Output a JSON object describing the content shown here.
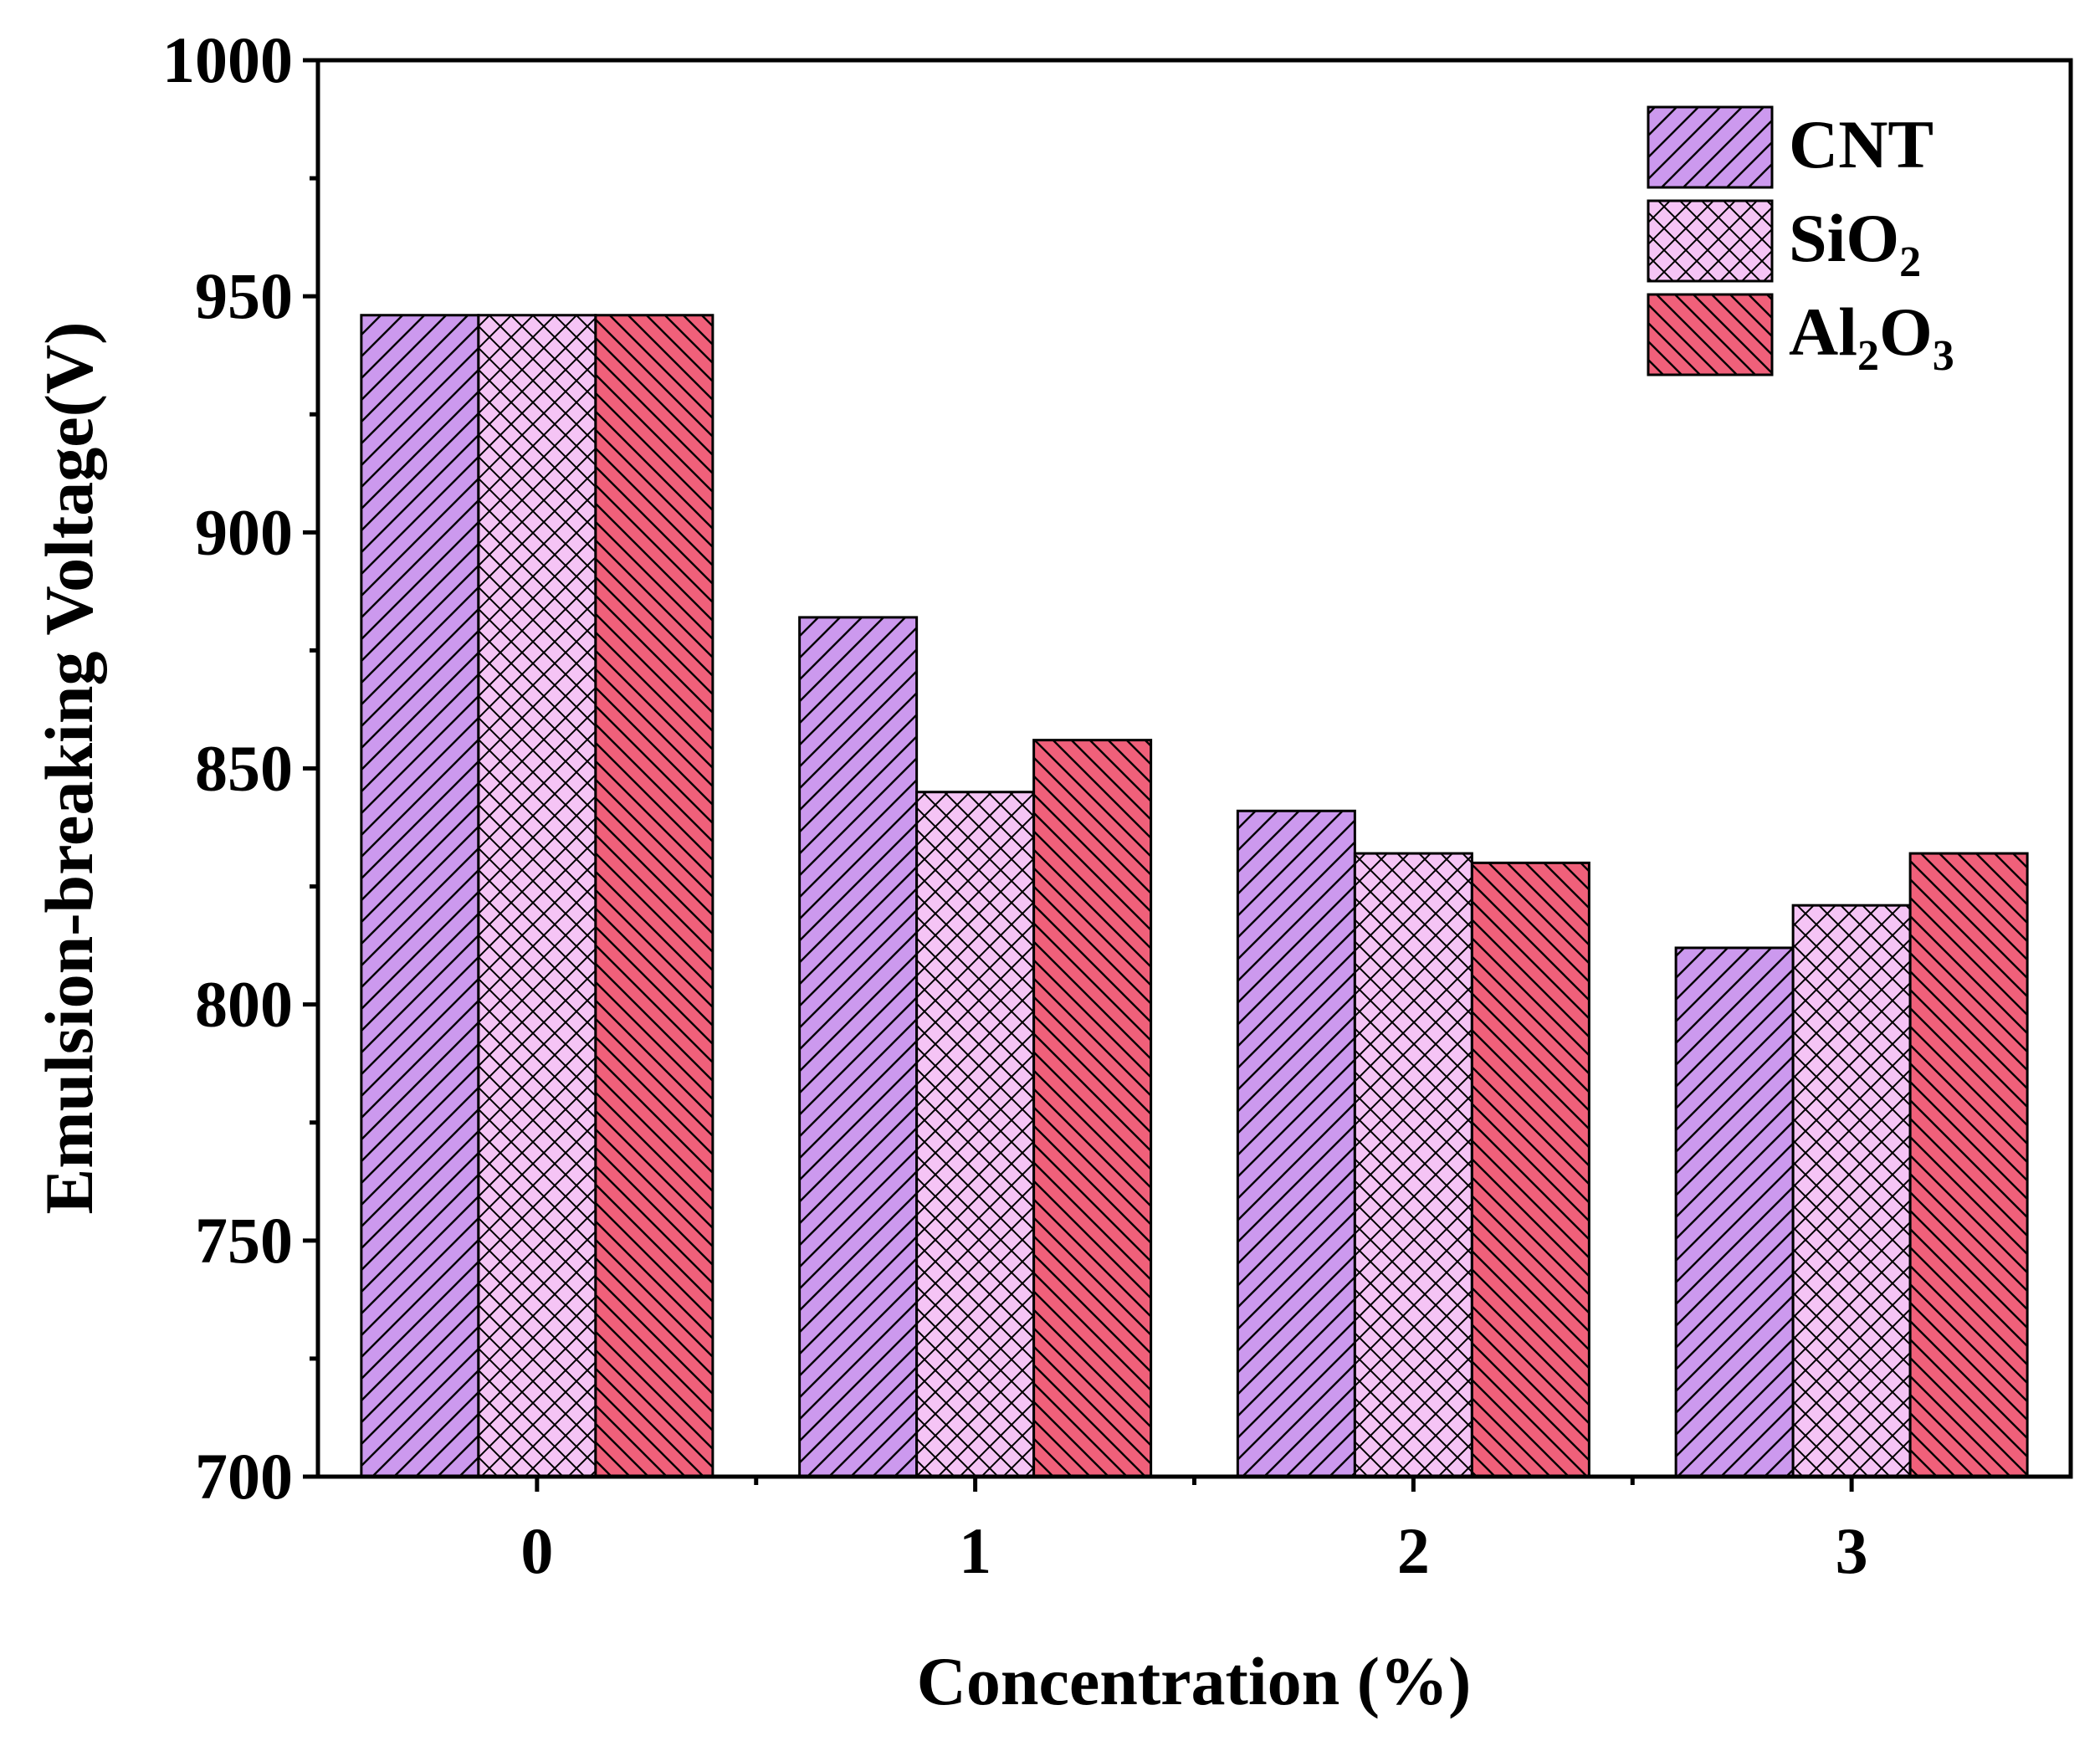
{
  "chart_data": {
    "type": "bar",
    "xlabel": "Concentration (%)",
    "ylabel": "Emulsion-breaking Voltage(V)",
    "categories": [
      "0",
      "1",
      "2",
      "3"
    ],
    "ylim": [
      700,
      1000
    ],
    "yticks": [
      "700",
      "750",
      "800",
      "850",
      "900",
      "950",
      "1000"
    ],
    "legend_position": "top-right",
    "series": [
      {
        "name": "CNT",
        "name_base": "CNT",
        "name_sub1": "",
        "name_mid": "",
        "name_sub2": "",
        "values": [
          946,
          882,
          841,
          812
        ],
        "color": "#cc99ee",
        "pattern": "diagonal-up"
      },
      {
        "name": "SiO2",
        "name_base": "SiO",
        "name_sub1": "2",
        "name_mid": "",
        "name_sub2": "",
        "values": [
          946,
          845,
          832,
          821
        ],
        "color": "#f5c4f5",
        "pattern": "crosshatch"
      },
      {
        "name": "Al2O3",
        "name_base": "Al",
        "name_sub1": "2",
        "name_mid": "O",
        "name_sub2": "3",
        "values": [
          946,
          856,
          830,
          832
        ],
        "color": "#f0607a",
        "pattern": "diagonal-down"
      }
    ]
  }
}
